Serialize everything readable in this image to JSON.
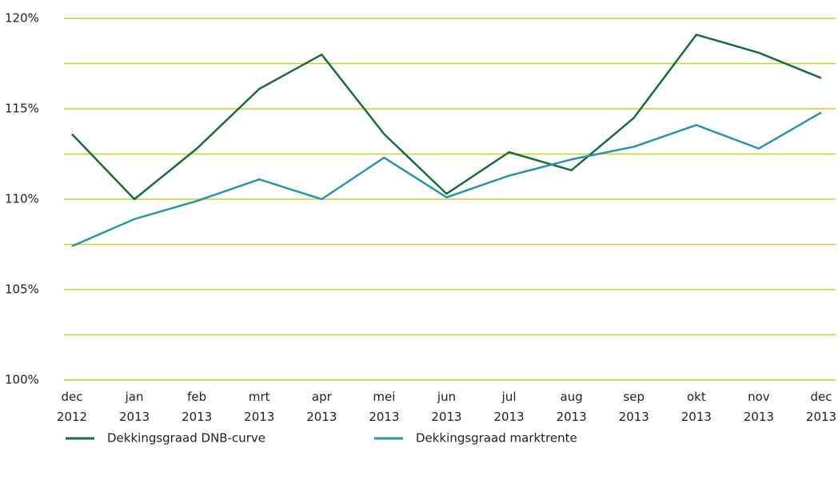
{
  "chart_data": {
    "type": "line",
    "categories": [
      [
        "dec",
        "2012"
      ],
      [
        "jan",
        "2013"
      ],
      [
        "feb",
        "2013"
      ],
      [
        "mrt",
        "2013"
      ],
      [
        "apr",
        "2013"
      ],
      [
        "mei",
        "2013"
      ],
      [
        "jun",
        "2013"
      ],
      [
        "jul",
        "2013"
      ],
      [
        "aug",
        "2013"
      ],
      [
        "sep",
        "2013"
      ],
      [
        "okt",
        "2013"
      ],
      [
        "nov",
        "2013"
      ],
      [
        "dec",
        "2013"
      ]
    ],
    "series": [
      {
        "name": "Dekkingsgraad DNB-curve",
        "color": "#1d6a3b",
        "values": [
          113.6,
          110.0,
          112.8,
          116.1,
          118.0,
          113.6,
          110.3,
          112.6,
          111.6,
          114.5,
          119.1,
          118.1,
          116.7
        ]
      },
      {
        "name": "Dekkingsgraad marktrente",
        "color": "#2b93a6",
        "values": [
          107.4,
          108.9,
          109.9,
          111.1,
          110.0,
          112.3,
          110.1,
          111.3,
          112.2,
          112.9,
          114.1,
          112.8,
          114.8
        ]
      }
    ],
    "ylim": [
      100,
      120
    ],
    "yticks": [
      {
        "value": 100,
        "label": "100%"
      },
      {
        "value": 105,
        "label": "105%"
      },
      {
        "value": 110,
        "label": "110%"
      },
      {
        "value": 115,
        "label": "115%"
      },
      {
        "value": 120,
        "label": "120%"
      }
    ],
    "minor_yticks": [
      102.5,
      107.5,
      112.5,
      117.5
    ],
    "grid": true,
    "legend": "bottom"
  }
}
